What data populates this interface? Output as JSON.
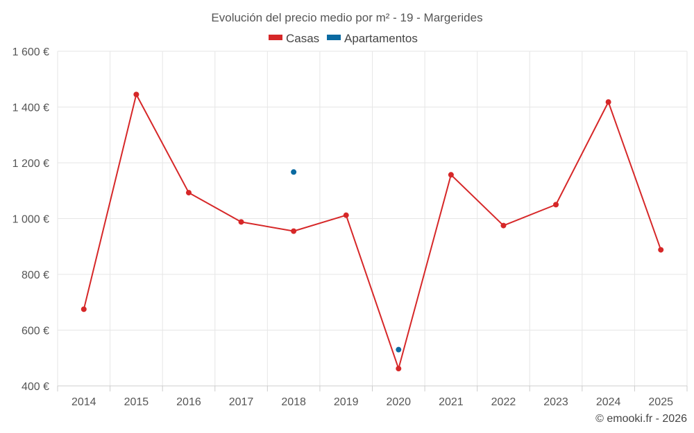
{
  "chart_data": {
    "type": "line",
    "title": "Evolución del precio medio por m² - 19 - Margerides",
    "categories": [
      "2014",
      "2015",
      "2016",
      "2017",
      "2018",
      "2019",
      "2020",
      "2021",
      "2022",
      "2023",
      "2024",
      "2025"
    ],
    "ylim": [
      400,
      1600
    ],
    "yticks": [
      400,
      600,
      800,
      1000,
      1200,
      1400,
      1600
    ],
    "ytick_labels": [
      "400 €",
      "600 €",
      "800 €",
      "1 000 €",
      "1 200 €",
      "1 400 €",
      "1 600 €"
    ],
    "xlabel": "",
    "ylabel": "",
    "grid": true,
    "legend_position": "top-center",
    "series": [
      {
        "name": "Casas",
        "color": "#d62728",
        "values": [
          675,
          1445,
          1093,
          988,
          955,
          1012,
          462,
          1157,
          975,
          1050,
          1418,
          888
        ]
      },
      {
        "name": "Apartamentos",
        "color": "#0a6aa1",
        "values": [
          null,
          null,
          null,
          null,
          1167,
          null,
          530,
          null,
          null,
          null,
          null,
          null
        ]
      }
    ]
  },
  "credit": "© emooki.fr - 2026"
}
